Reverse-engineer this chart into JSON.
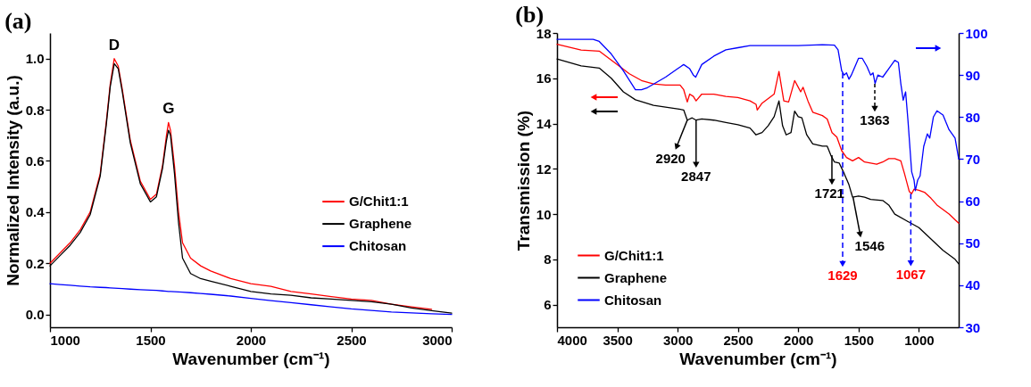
{
  "chart_data": [
    {
      "type": "line",
      "title": "(a)",
      "xlabel": "Wavenumber (cm⁻¹)",
      "ylabel": "Normalized Intensity (a.u.)",
      "x": [
        1000,
        1050,
        1100,
        1150,
        1200,
        1250,
        1280,
        1300,
        1320,
        1340,
        1360,
        1400,
        1450,
        1500,
        1530,
        1560,
        1580,
        1590,
        1600,
        1620,
        1640,
        1660,
        1700,
        1750,
        1800,
        1900,
        2000,
        2100,
        2200,
        2300,
        2400,
        2500,
        2600,
        2700,
        2800,
        2900,
        3000
      ],
      "series": [
        {
          "name": "G/Chit1:1",
          "color": "#ff0000",
          "values": [
            0.2,
            0.24,
            0.28,
            0.33,
            0.4,
            0.55,
            0.75,
            0.9,
            1.0,
            0.97,
            0.88,
            0.68,
            0.52,
            0.45,
            0.47,
            0.58,
            0.7,
            0.75,
            0.72,
            0.58,
            0.4,
            0.28,
            0.22,
            0.19,
            0.17,
            0.14,
            0.12,
            0.11,
            0.09,
            0.08,
            0.07,
            0.06,
            0.055,
            0.04,
            0.03,
            0.02,
            null
          ]
        },
        {
          "name": "Graphene",
          "color": "#000000",
          "values": [
            0.19,
            0.23,
            0.27,
            0.32,
            0.39,
            0.54,
            0.74,
            0.89,
            0.98,
            0.96,
            0.87,
            0.67,
            0.51,
            0.44,
            0.46,
            0.57,
            0.68,
            0.72,
            0.7,
            0.55,
            0.36,
            0.22,
            0.16,
            0.14,
            0.13,
            0.11,
            0.09,
            0.08,
            0.075,
            0.065,
            0.06,
            0.055,
            0.05,
            0.04,
            0.025,
            0.015,
            0.005
          ]
        },
        {
          "name": "Chitosan",
          "color": "#0000ff",
          "values": [
            0.12,
            0.117,
            0.114,
            0.111,
            0.108,
            0.106,
            0.105,
            0.104,
            0.103,
            0.102,
            0.101,
            0.099,
            0.097,
            0.095,
            0.094,
            0.092,
            0.091,
            0.09,
            0.09,
            0.089,
            0.088,
            0.087,
            0.085,
            0.082,
            0.079,
            0.072,
            0.063,
            0.054,
            0.046,
            0.038,
            0.03,
            0.022,
            0.016,
            0.01,
            0.006,
            0.003,
            0.0
          ]
        }
      ],
      "xlim": [
        1000,
        3000
      ],
      "ylim": [
        -0.05,
        1.1
      ],
      "xticks": [
        1000,
        1500,
        2000,
        2500,
        3000
      ],
      "yticks": [
        {
          "value": 0,
          "label": "0.0"
        },
        0.2,
        0.4,
        0.6,
        0.8,
        {
          "value": 1,
          "label": "1.0"
        }
      ],
      "annotations": [
        {
          "text": "D",
          "x": 1320,
          "y": 1.0
        },
        {
          "text": "G",
          "x": 1590,
          "y": 0.75
        }
      ],
      "legend": "right"
    },
    {
      "type": "line",
      "title": "(b)",
      "xlabel": "Wavenumber (cm⁻¹)",
      "ylabel": "Transmission (%)",
      "series": [
        {
          "name": "G/Chit1:1",
          "color": "#ff0000",
          "x": [
            4000,
            3800,
            3650,
            3500,
            3400,
            3300,
            3200,
            3100,
            2980,
            2950,
            2920,
            2900,
            2870,
            2847,
            2800,
            2700,
            2600,
            2500,
            2400,
            2350,
            2340,
            2300,
            2200,
            2160,
            2120,
            2080,
            2030,
            2000,
            1980,
            1960,
            1920,
            1880,
            1800,
            1760,
            1720,
            1680,
            1640,
            1600,
            1550,
            1500,
            1450,
            1400,
            1350,
            1300,
            1250,
            1200,
            1150,
            1120,
            1080,
            1060,
            1040,
            1000,
            950,
            900,
            850,
            800,
            750,
            700,
            670
          ],
          "values": [
            17.5,
            17.25,
            17.2,
            16.6,
            16.2,
            15.9,
            15.75,
            15.7,
            15.7,
            15.5,
            14.95,
            15.3,
            15.2,
            15.0,
            15.3,
            15.3,
            15.2,
            15.15,
            15.0,
            14.85,
            14.6,
            14.9,
            15.3,
            16.3,
            15.0,
            14.95,
            15.9,
            15.6,
            15.4,
            15.6,
            15.0,
            14.5,
            14.35,
            14.2,
            13.6,
            13.4,
            12.8,
            12.5,
            12.35,
            12.5,
            12.3,
            12.25,
            12.2,
            12.3,
            12.45,
            12.45,
            12.35,
            11.8,
            11.0,
            10.9,
            11.1,
            11.05,
            10.95,
            10.7,
            10.4,
            10.2,
            10.0,
            9.75,
            9.6
          ]
        },
        {
          "name": "Graphene",
          "color": "#000000",
          "x": [
            4000,
            3800,
            3650,
            3550,
            3450,
            3350,
            3200,
            3000,
            2950,
            2920,
            2880,
            2847,
            2800,
            2700,
            2600,
            2500,
            2400,
            2350,
            2300,
            2250,
            2200,
            2160,
            2130,
            2100,
            2060,
            2030,
            2000,
            1970,
            1930,
            1880,
            1800,
            1760,
            1730,
            1700,
            1660,
            1620,
            1580,
            1550,
            1500,
            1450,
            1400,
            1300,
            1250,
            1200,
            1100,
            1000,
            900,
            800,
            700,
            670
          ],
          "values": [
            16.85,
            16.55,
            16.45,
            16.0,
            15.4,
            15.05,
            14.8,
            14.65,
            14.6,
            14.15,
            14.25,
            14.15,
            14.2,
            14.15,
            14.05,
            13.95,
            13.8,
            13.5,
            13.6,
            13.9,
            14.3,
            15.0,
            13.9,
            13.5,
            13.6,
            14.55,
            14.3,
            14.25,
            13.5,
            13.1,
            13.0,
            13.0,
            12.6,
            12.3,
            12.25,
            11.8,
            11.3,
            10.75,
            10.8,
            10.75,
            10.65,
            10.6,
            10.4,
            10.0,
            9.7,
            9.4,
            8.9,
            8.4,
            8.0,
            7.8
          ]
        },
        {
          "name": "Chitosan",
          "color": "#0000ff",
          "axis": "y2",
          "x": [
            4000,
            3700,
            3650,
            3550,
            3450,
            3350,
            3300,
            3250,
            3100,
            3000,
            2950,
            2900,
            2870,
            2850,
            2800,
            2700,
            2600,
            2500,
            2400,
            2000,
            1800,
            1700,
            1670,
            1640,
            1620,
            1600,
            1580,
            1560,
            1500,
            1470,
            1430,
            1400,
            1380,
            1363,
            1340,
            1300,
            1250,
            1200,
            1170,
            1150,
            1130,
            1110,
            1090,
            1060,
            1040,
            1030,
            1010,
            990,
            960,
            930,
            910,
            880,
            850,
            800,
            750,
            700,
            670
          ],
          "values": [
            98.5,
            98.5,
            98,
            95,
            91,
            86.5,
            86.5,
            87,
            89.5,
            91.5,
            92.5,
            91.5,
            90,
            89.5,
            92.5,
            94.5,
            96,
            96.5,
            97,
            97,
            97.2,
            97.1,
            96,
            91,
            90,
            90.5,
            89,
            90,
            94,
            94,
            92,
            90,
            90.5,
            88,
            90,
            89.5,
            91.5,
            93.5,
            93,
            88,
            84,
            86,
            79,
            67,
            65,
            62.5,
            65,
            66,
            73,
            76,
            75,
            80,
            81.5,
            80.5,
            77,
            75,
            70
          ]
        }
      ],
      "xlim": [
        4000,
        670
      ],
      "ylim": [
        5,
        18
      ],
      "y2lim": [
        30,
        100
      ],
      "xticks": [
        4000,
        3500,
        3000,
        2500,
        2000,
        1500,
        1000
      ],
      "yticks": [
        6,
        8,
        10,
        12,
        14,
        16,
        18
      ],
      "y2ticks": [
        30,
        40,
        50,
        60,
        70,
        80,
        90,
        100
      ],
      "annotations": [
        {
          "text": "2920",
          "x": 2920,
          "y": 14.15
        },
        {
          "text": "2847",
          "x": 2847,
          "y": 14.15
        },
        {
          "text": "1721",
          "x": 1721,
          "y": 12.6
        },
        {
          "text": "1546",
          "x": 1546,
          "y": 10.75
        },
        "1363",
        "1629",
        {
          "text": "1067",
          "x": 1067,
          "y": 10.9
        }
      ],
      "legend": "bottom left"
    }
  ]
}
